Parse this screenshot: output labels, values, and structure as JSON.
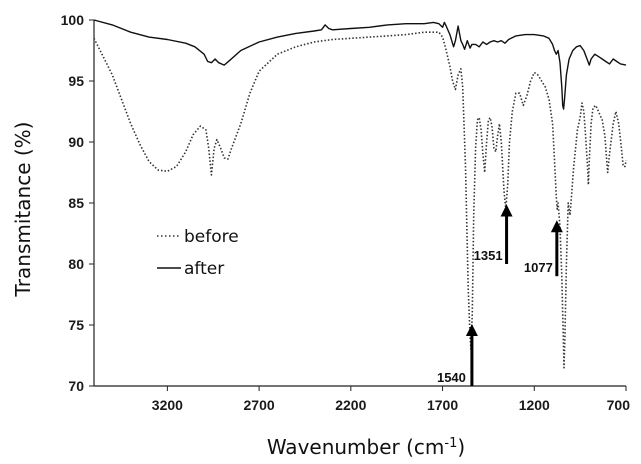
{
  "chart_data": {
    "type": "line",
    "title": "",
    "xlabel": "Wavenumber (cm",
    "xlabel_sup": "-1",
    "xlabel_suffix": ")",
    "ylabel": "Transmitance (%)",
    "xlim": [
      3600,
      700
    ],
    "ylim": [
      70,
      100
    ],
    "x_reversed": true,
    "xticks": [
      3200,
      2700,
      2200,
      1700,
      1200,
      700
    ],
    "yticks": [
      70,
      75,
      80,
      85,
      90,
      95,
      100
    ],
    "grid": false,
    "legend_position": "left",
    "series": [
      {
        "name": "before",
        "style": "dotted",
        "color": "#333333",
        "points": [
          [
            3600,
            98.5
          ],
          [
            3550,
            97.0
          ],
          [
            3500,
            95.5
          ],
          [
            3450,
            93.5
          ],
          [
            3400,
            91.5
          ],
          [
            3350,
            89.8
          ],
          [
            3300,
            88.4
          ],
          [
            3250,
            87.7
          ],
          [
            3200,
            87.6
          ],
          [
            3150,
            88.0
          ],
          [
            3100,
            89.2
          ],
          [
            3060,
            90.6
          ],
          [
            3020,
            91.3
          ],
          [
            2990,
            91.0
          ],
          [
            2975,
            89.5
          ],
          [
            2960,
            87.3
          ],
          [
            2945,
            89.5
          ],
          [
            2930,
            90.2
          ],
          [
            2910,
            89.5
          ],
          [
            2890,
            88.7
          ],
          [
            2870,
            88.6
          ],
          [
            2850,
            89.5
          ],
          [
            2800,
            91.5
          ],
          [
            2750,
            94.0
          ],
          [
            2700,
            95.8
          ],
          [
            2600,
            97.2
          ],
          [
            2500,
            97.8
          ],
          [
            2400,
            98.2
          ],
          [
            2350,
            98.3
          ],
          [
            2300,
            98.4
          ],
          [
            2200,
            98.5
          ],
          [
            2100,
            98.6
          ],
          [
            2000,
            98.7
          ],
          [
            1900,
            98.8
          ],
          [
            1800,
            99.0
          ],
          [
            1720,
            99.0
          ],
          [
            1700,
            98.6
          ],
          [
            1680,
            97.5
          ],
          [
            1660,
            96.2
          ],
          [
            1645,
            95.0
          ],
          [
            1630,
            94.3
          ],
          [
            1615,
            95.5
          ],
          [
            1600,
            96.0
          ],
          [
            1590,
            94.5
          ],
          [
            1575,
            88.0
          ],
          [
            1560,
            78.0
          ],
          [
            1550,
            74.0
          ],
          [
            1545,
            73.0
          ],
          [
            1538,
            76.0
          ],
          [
            1530,
            84.0
          ],
          [
            1520,
            89.5
          ],
          [
            1510,
            91.8
          ],
          [
            1500,
            92.0
          ],
          [
            1490,
            91.0
          ],
          [
            1480,
            89.0
          ],
          [
            1470,
            87.5
          ],
          [
            1460,
            90.0
          ],
          [
            1450,
            91.8
          ],
          [
            1440,
            92.0
          ],
          [
            1430,
            91.2
          ],
          [
            1420,
            89.5
          ],
          [
            1410,
            89.2
          ],
          [
            1400,
            90.5
          ],
          [
            1390,
            91.5
          ],
          [
            1380,
            90.0
          ],
          [
            1365,
            86.0
          ],
          [
            1355,
            84.5
          ],
          [
            1345,
            86.5
          ],
          [
            1335,
            90.0
          ],
          [
            1320,
            92.5
          ],
          [
            1300,
            94.0
          ],
          [
            1280,
            94.0
          ],
          [
            1260,
            93.0
          ],
          [
            1240,
            93.8
          ],
          [
            1220,
            95.0
          ],
          [
            1200,
            95.7
          ],
          [
            1180,
            95.5
          ],
          [
            1160,
            95.0
          ],
          [
            1140,
            94.5
          ],
          [
            1120,
            93.5
          ],
          [
            1100,
            91.5
          ],
          [
            1090,
            88.5
          ],
          [
            1080,
            85.5
          ],
          [
            1075,
            84.5
          ],
          [
            1070,
            85.0
          ],
          [
            1060,
            83.0
          ],
          [
            1050,
            79.0
          ],
          [
            1042,
            74.0
          ],
          [
            1038,
            71.5
          ],
          [
            1033,
            74.0
          ],
          [
            1025,
            80.0
          ],
          [
            1015,
            85.0
          ],
          [
            1005,
            84.0
          ],
          [
            995,
            86.0
          ],
          [
            985,
            88.0
          ],
          [
            975,
            89.5
          ],
          [
            965,
            91.0
          ],
          [
            950,
            92.0
          ],
          [
            940,
            93.2
          ],
          [
            930,
            92.5
          ],
          [
            920,
            90.5
          ],
          [
            910,
            88.0
          ],
          [
            905,
            86.5
          ],
          [
            900,
            88.5
          ],
          [
            890,
            91.5
          ],
          [
            880,
            92.8
          ],
          [
            865,
            93.0
          ],
          [
            850,
            92.5
          ],
          [
            830,
            91.8
          ],
          [
            815,
            90.5
          ],
          [
            805,
            88.5
          ],
          [
            800,
            87.5
          ],
          [
            790,
            89.0
          ],
          [
            770,
            91.5
          ],
          [
            755,
            92.5
          ],
          [
            740,
            91.5
          ],
          [
            725,
            89.5
          ],
          [
            715,
            88.0
          ],
          [
            705,
            88.0
          ],
          [
            700,
            88.5
          ]
        ]
      },
      {
        "name": "after",
        "style": "solid",
        "color": "#111111",
        "points": [
          [
            3600,
            100.0
          ],
          [
            3500,
            99.6
          ],
          [
            3400,
            99.0
          ],
          [
            3300,
            98.6
          ],
          [
            3200,
            98.4
          ],
          [
            3100,
            98.1
          ],
          [
            3050,
            97.8
          ],
          [
            3000,
            97.2
          ],
          [
            2980,
            96.6
          ],
          [
            2960,
            96.5
          ],
          [
            2940,
            96.8
          ],
          [
            2920,
            96.5
          ],
          [
            2890,
            96.3
          ],
          [
            2860,
            96.7
          ],
          [
            2800,
            97.5
          ],
          [
            2700,
            98.2
          ],
          [
            2600,
            98.6
          ],
          [
            2500,
            98.9
          ],
          [
            2400,
            99.1
          ],
          [
            2360,
            99.2
          ],
          [
            2340,
            99.6
          ],
          [
            2320,
            99.3
          ],
          [
            2300,
            99.2
          ],
          [
            2200,
            99.3
          ],
          [
            2100,
            99.4
          ],
          [
            2000,
            99.6
          ],
          [
            1900,
            99.7
          ],
          [
            1800,
            99.7
          ],
          [
            1750,
            99.8
          ],
          [
            1720,
            99.7
          ],
          [
            1700,
            99.4
          ],
          [
            1690,
            99.8
          ],
          [
            1680,
            99.5
          ],
          [
            1660,
            98.8
          ],
          [
            1640,
            97.8
          ],
          [
            1630,
            98.3
          ],
          [
            1615,
            99.5
          ],
          [
            1600,
            98.3
          ],
          [
            1590,
            98.0
          ],
          [
            1580,
            97.6
          ],
          [
            1565,
            98.3
          ],
          [
            1550,
            97.7
          ],
          [
            1540,
            98.0
          ],
          [
            1520,
            98.0
          ],
          [
            1500,
            97.8
          ],
          [
            1480,
            98.2
          ],
          [
            1460,
            98.0
          ],
          [
            1440,
            98.2
          ],
          [
            1420,
            98.3
          ],
          [
            1400,
            98.2
          ],
          [
            1380,
            98.3
          ],
          [
            1360,
            98.1
          ],
          [
            1340,
            98.4
          ],
          [
            1300,
            98.7
          ],
          [
            1250,
            98.8
          ],
          [
            1200,
            98.8
          ],
          [
            1150,
            98.7
          ],
          [
            1120,
            98.5
          ],
          [
            1100,
            98.0
          ],
          [
            1090,
            97.5
          ],
          [
            1080,
            97.2
          ],
          [
            1070,
            97.5
          ],
          [
            1060,
            96.5
          ],
          [
            1050,
            94.5
          ],
          [
            1045,
            93.0
          ],
          [
            1040,
            92.7
          ],
          [
            1035,
            93.5
          ],
          [
            1025,
            95.5
          ],
          [
            1010,
            96.8
          ],
          [
            990,
            97.5
          ],
          [
            970,
            97.8
          ],
          [
            950,
            97.9
          ],
          [
            930,
            97.5
          ],
          [
            910,
            96.7
          ],
          [
            900,
            96.3
          ],
          [
            890,
            96.8
          ],
          [
            870,
            97.2
          ],
          [
            850,
            97.0
          ],
          [
            830,
            96.8
          ],
          [
            810,
            96.6
          ],
          [
            790,
            96.4
          ],
          [
            770,
            96.8
          ],
          [
            750,
            96.6
          ],
          [
            730,
            96.4
          ],
          [
            700,
            96.3
          ]
        ]
      }
    ],
    "annotations": [
      {
        "label": "1540",
        "x": 1540,
        "arrow_y": [
          70,
          75
        ]
      },
      {
        "label": "1351",
        "x": 1351,
        "arrow_y": [
          80,
          84.8
        ]
      },
      {
        "label": "1077",
        "x": 1077,
        "arrow_y": [
          79,
          83.5
        ]
      }
    ]
  }
}
